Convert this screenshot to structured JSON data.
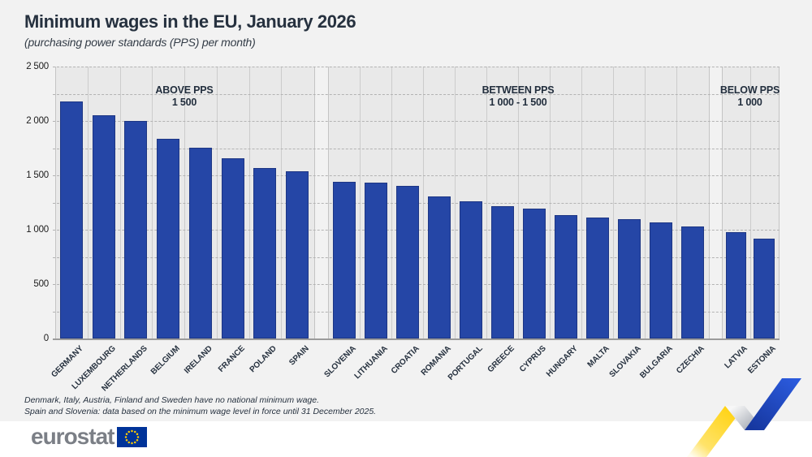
{
  "header": {
    "title": "Minimum wages in the EU, January 2026",
    "subtitle": "(purchasing power standards (PPS) per month)"
  },
  "chart_data": {
    "type": "bar",
    "title": "Minimum wages in the EU, January 2026",
    "ylabel": "PPS per month",
    "ylim": [
      0,
      2500
    ],
    "y_ticks": [
      0,
      500,
      1000,
      1500,
      2000,
      2500
    ],
    "y_tick_labels": [
      "0",
      "500",
      "1 000",
      "1 500",
      "2 000",
      "2 500"
    ],
    "minor_grid_step": 250,
    "grid": "horizontal-dashed",
    "bar_color": "#2546a6",
    "groups": [
      {
        "header_line1": "ABOVE PPS",
        "header_line2": "1 500",
        "categories": [
          "GERMANY",
          "LUXEMBOURG",
          "NETHERLANDS",
          "BELGIUM",
          "IRELAND",
          "FRANCE",
          "POLAND",
          "SPAIN"
        ],
        "values": [
          2180,
          2055,
          2000,
          1835,
          1755,
          1655,
          1570,
          1540
        ]
      },
      {
        "header_line1": "BETWEEN PPS",
        "header_line2": "1 000 - 1 500",
        "categories": [
          "SLOVENIA",
          "LITHUANIA",
          "CROATIA",
          "ROMANIA",
          "PORTUGAL",
          "GREECE",
          "CYPRUS",
          "HUNGARY",
          "MALTA",
          "SLOVAKIA",
          "BULGARIA",
          "CZECHIA"
        ],
        "values": [
          1440,
          1435,
          1405,
          1305,
          1260,
          1215,
          1195,
          1135,
          1110,
          1100,
          1070,
          1030
        ]
      },
      {
        "header_line1": "BELOW PPS",
        "header_line2": "1 000",
        "categories": [
          "LATVIA",
          "ESTONIA"
        ],
        "values": [
          980,
          915
        ]
      }
    ]
  },
  "footnotes": {
    "line1": "Denmark, Italy, Austria, Finland and Sweden have no national minimum wage.",
    "line2": "Spain and Slovenia: data based on the minimum wage level in force until 31 December 2025."
  },
  "footer": {
    "logo_text": "eurostat"
  },
  "colors": {
    "page_bg": "#f2f2f2",
    "panel_bg": "#e9e9e9",
    "bar": "#2546a6",
    "flag_blue": "#003399",
    "flag_stars": "#ffcc00",
    "ribbon_yellow": "#ffd10a",
    "ribbon_blue": "#1d4fc8"
  }
}
